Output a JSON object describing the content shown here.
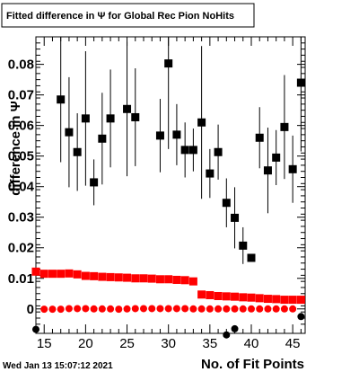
{
  "chart_data": {
    "type": "scatter",
    "title": "Fitted difference in  Ψ  for Global Rec Pion NoHits",
    "xlabel": "No. of Fit Points",
    "ylabel": "difference in Ψ",
    "footer": "Wed Jan 13 15:07:12 2021",
    "xlim": [
      14,
      46.5
    ],
    "ylim": [
      -0.008,
      0.089
    ],
    "x_ticks": [
      15,
      20,
      25,
      30,
      35,
      40,
      45
    ],
    "y_ticks": [
      0,
      0.01,
      0.02,
      0.03,
      0.04,
      0.05,
      0.06,
      0.07,
      0.08
    ],
    "y_tick_labels": [
      "0",
      "0.01",
      "0.02",
      "0.03",
      "0.04",
      "0.05",
      "0.06",
      "0.07",
      "0.08"
    ],
    "grid": false,
    "colors": {
      "mean": "#000000",
      "sigma": "#ff0000",
      "axis": "#000000"
    },
    "series": [
      {
        "marker": "square",
        "color": "#000000",
        "points": [
          {
            "x": 17,
            "y": 0.0685,
            "err": 0.0205
          },
          {
            "x": 18,
            "y": 0.0578,
            "err": 0.018
          },
          {
            "x": 19,
            "y": 0.0513,
            "err": 0.0127
          },
          {
            "x": 20,
            "y": 0.0623,
            "err": 0.022
          },
          {
            "x": 21,
            "y": 0.0414,
            "err": 0.0075
          },
          {
            "x": 22,
            "y": 0.0557,
            "err": 0.015
          },
          {
            "x": 23,
            "y": 0.0623,
            "err": 0.016
          },
          {
            "x": 25,
            "y": 0.0654,
            "err": 0.022
          },
          {
            "x": 26,
            "y": 0.0627,
            "err": 0.016
          },
          {
            "x": 29,
            "y": 0.0567,
            "err": 0.012
          },
          {
            "x": 30,
            "y": 0.0803,
            "err": 0.028
          },
          {
            "x": 31,
            "y": 0.057,
            "err": 0.01
          },
          {
            "x": 32,
            "y": 0.052,
            "err": 0.009
          },
          {
            "x": 33,
            "y": 0.052,
            "err": 0.007
          },
          {
            "x": 34,
            "y": 0.061,
            "err": 0.025
          },
          {
            "x": 35,
            "y": 0.0443,
            "err": 0.008
          },
          {
            "x": 36,
            "y": 0.0513,
            "err": 0.009
          },
          {
            "x": 37,
            "y": 0.0347,
            "err": 0.008
          },
          {
            "x": 38,
            "y": 0.0298,
            "err": 0.01
          },
          {
            "x": 39,
            "y": 0.0207,
            "err": 0.006
          },
          {
            "x": 40,
            "y": 0.0167,
            "err": 0.0
          },
          {
            "x": 41,
            "y": 0.056,
            "err": 0.01
          },
          {
            "x": 42,
            "y": 0.0453,
            "err": 0.014
          },
          {
            "x": 43,
            "y": 0.0495,
            "err": 0.009
          },
          {
            "x": 44,
            "y": 0.0595,
            "err": 0.017
          },
          {
            "x": 45,
            "y": 0.0457,
            "err": 0.011
          },
          {
            "x": 46,
            "y": 0.074,
            "err": 0.0225
          }
        ]
      },
      {
        "marker": "square",
        "color": "#ff0000",
        "points": [
          {
            "x": 14,
            "y": 0.0122
          },
          {
            "x": 15,
            "y": 0.0115
          },
          {
            "x": 16,
            "y": 0.0115
          },
          {
            "x": 17,
            "y": 0.0115
          },
          {
            "x": 18,
            "y": 0.0116
          },
          {
            "x": 19,
            "y": 0.0113
          },
          {
            "x": 20,
            "y": 0.0108
          },
          {
            "x": 21,
            "y": 0.0107
          },
          {
            "x": 22,
            "y": 0.0105
          },
          {
            "x": 23,
            "y": 0.0104
          },
          {
            "x": 24,
            "y": 0.0103
          },
          {
            "x": 25,
            "y": 0.0102
          },
          {
            "x": 26,
            "y": 0.01
          },
          {
            "x": 27,
            "y": 0.01
          },
          {
            "x": 28,
            "y": 0.0099
          },
          {
            "x": 29,
            "y": 0.0097
          },
          {
            "x": 30,
            "y": 0.0097
          },
          {
            "x": 31,
            "y": 0.0095
          },
          {
            "x": 32,
            "y": 0.0094
          },
          {
            "x": 33,
            "y": 0.009
          },
          {
            "x": 34,
            "y": 0.0047
          },
          {
            "x": 35,
            "y": 0.0045
          },
          {
            "x": 36,
            "y": 0.0042
          },
          {
            "x": 37,
            "y": 0.0041
          },
          {
            "x": 38,
            "y": 0.004
          },
          {
            "x": 39,
            "y": 0.0038
          },
          {
            "x": 40,
            "y": 0.0037
          },
          {
            "x": 41,
            "y": 0.0035
          },
          {
            "x": 42,
            "y": 0.0033
          },
          {
            "x": 43,
            "y": 0.0032
          },
          {
            "x": 44,
            "y": 0.003
          },
          {
            "x": 45,
            "y": 0.003
          },
          {
            "x": 46,
            "y": 0.003
          }
        ]
      },
      {
        "marker": "circle",
        "color": "#ff0000",
        "points": [
          {
            "x": 15,
            "y": -0.0001
          },
          {
            "x": 16,
            "y": -0.0001
          },
          {
            "x": 17,
            "y": -0.0001
          },
          {
            "x": 18,
            "y": 0.0001
          },
          {
            "x": 19,
            "y": 0.0001
          },
          {
            "x": 20,
            "y": 0.0001
          },
          {
            "x": 21,
            "y": 0.0
          },
          {
            "x": 22,
            "y": 0.0
          },
          {
            "x": 23,
            "y": 0.0
          },
          {
            "x": 24,
            "y": -0.0001
          },
          {
            "x": 25,
            "y": 0.0
          },
          {
            "x": 26,
            "y": 0.0001
          },
          {
            "x": 27,
            "y": 0.0001
          },
          {
            "x": 28,
            "y": 0.0001
          },
          {
            "x": 29,
            "y": 0.0001
          },
          {
            "x": 30,
            "y": 0.0001
          },
          {
            "x": 31,
            "y": 0.0001
          },
          {
            "x": 32,
            "y": 0.0001
          },
          {
            "x": 33,
            "y": 0.0
          },
          {
            "x": 34,
            "y": 0.0
          },
          {
            "x": 35,
            "y": 0.0
          },
          {
            "x": 36,
            "y": 0.0
          },
          {
            "x": 37,
            "y": 0.0
          },
          {
            "x": 38,
            "y": 0.0
          },
          {
            "x": 39,
            "y": 0.0
          },
          {
            "x": 40,
            "y": 0.0
          },
          {
            "x": 41,
            "y": 0.0
          },
          {
            "x": 42,
            "y": 0.0
          },
          {
            "x": 43,
            "y": 0.0
          },
          {
            "x": 44,
            "y": 0.0
          },
          {
            "x": 45,
            "y": 0.0
          }
        ]
      },
      {
        "marker": "circle",
        "color": "#000000",
        "points": [
          {
            "x": 14,
            "y": -0.0067
          },
          {
            "x": 37,
            "y": -0.0085
          },
          {
            "x": 38,
            "y": -0.0065
          },
          {
            "x": 46,
            "y": -0.0025
          }
        ]
      }
    ]
  }
}
